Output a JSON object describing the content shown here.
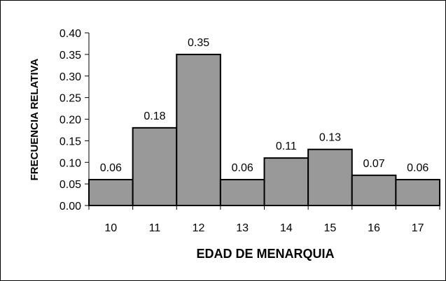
{
  "chart_data": {
    "type": "bar",
    "categories": [
      "10",
      "11",
      "12",
      "13",
      "14",
      "15",
      "16",
      "17"
    ],
    "values": [
      0.06,
      0.18,
      0.35,
      0.06,
      0.11,
      0.13,
      0.07,
      0.06
    ],
    "value_labels": [
      "0.06",
      "0.18",
      "0.35",
      "0.06",
      "0.11",
      "0.13",
      "0.07",
      "0.06"
    ],
    "title": "",
    "xlabel": "EDAD DE MENARQUIA",
    "ylabel": "FRECUENCIA RELATIVA",
    "ylim": [
      0,
      0.4
    ],
    "yticks": [
      0,
      0.05,
      0.1,
      0.15,
      0.2,
      0.25,
      0.3,
      0.35,
      0.4
    ],
    "ytick_labels": [
      "0.00",
      "0.05",
      "0.10",
      "0.15",
      "0.20",
      "0.25",
      "0.30",
      "0.35",
      "0.40"
    ],
    "grid": false,
    "legend": "none",
    "colors": {
      "bar_fill": "#999999",
      "bar_stroke": "#000000",
      "axis": "#000000",
      "frame": "#000000",
      "background": "#ffffff"
    }
  }
}
